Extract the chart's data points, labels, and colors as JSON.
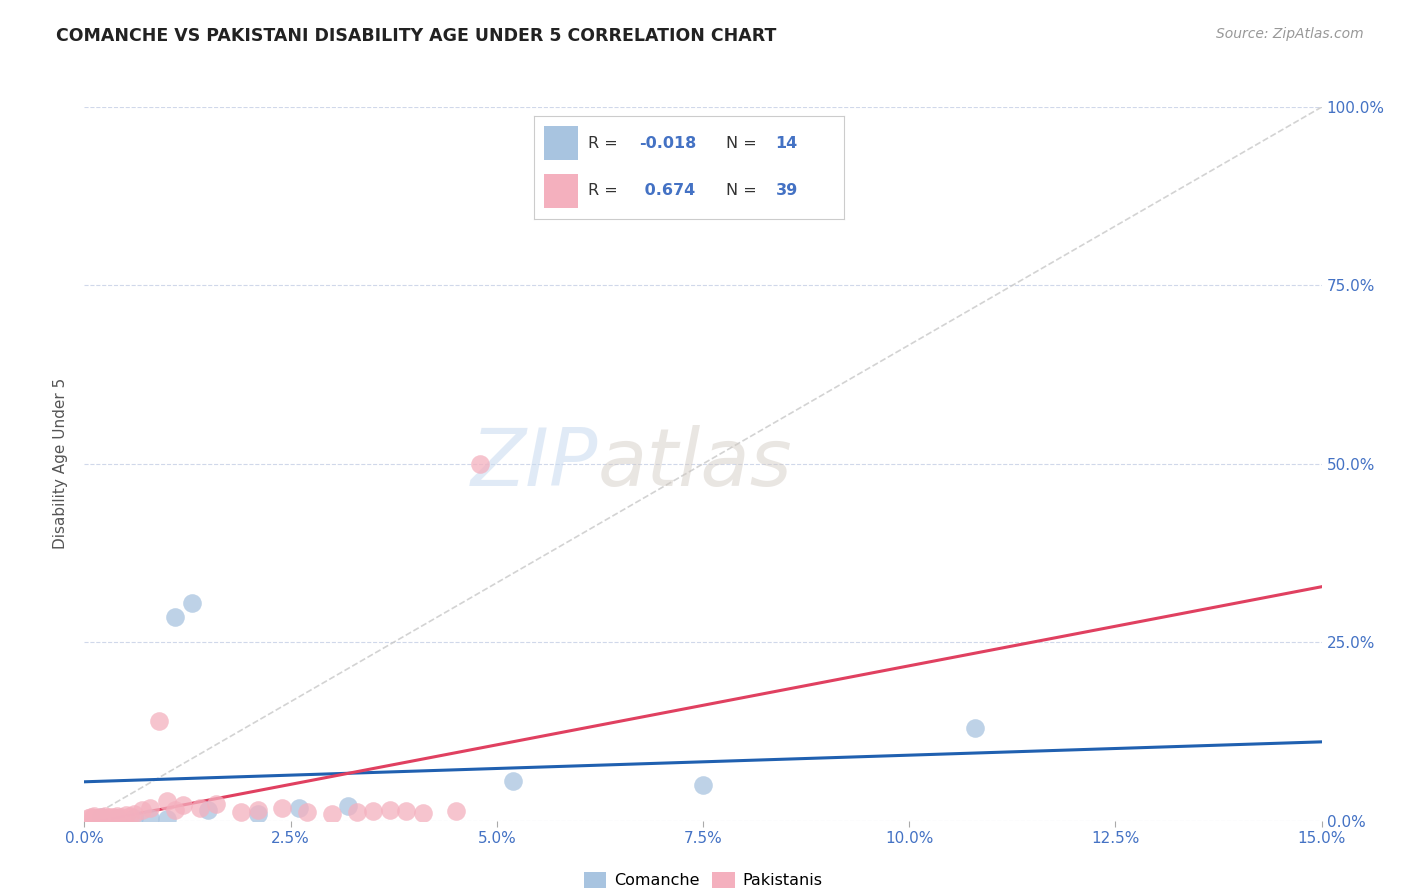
{
  "title": "COMANCHE VS PAKISTANI DISABILITY AGE UNDER 5 CORRELATION CHART",
  "source": "Source: ZipAtlas.com",
  "ylabel": "Disability Age Under 5",
  "xlabel_vals": [
    0.0,
    2.5,
    5.0,
    7.5,
    10.0,
    12.5,
    15.0
  ],
  "ylabel_vals": [
    0.0,
    25.0,
    50.0,
    75.0,
    100.0
  ],
  "xlim": [
    0.0,
    15.0
  ],
  "ylim": [
    0.0,
    100.0
  ],
  "comanche_R": -0.018,
  "comanche_N": 14,
  "pakistani_R": 0.674,
  "pakistani_N": 39,
  "comanche_color": "#a8c4e0",
  "pakistani_color": "#f4b0be",
  "comanche_line_color": "#2060b0",
  "pakistani_line_color": "#e04060",
  "diagonal_color": "#c8c8c8",
  "watermark_zip": "ZIP",
  "watermark_atlas": "atlas",
  "comanche_x": [
    0.2,
    0.4,
    0.6,
    0.8,
    1.0,
    1.1,
    1.3,
    1.5,
    2.1,
    2.6,
    3.2,
    5.2,
    7.5,
    10.8
  ],
  "comanche_y": [
    0.5,
    0.3,
    0.4,
    0.3,
    0.2,
    28.5,
    30.5,
    1.5,
    1.0,
    1.8,
    2.0,
    5.5,
    5.0,
    13.0
  ],
  "pakistani_x": [
    0.05,
    0.08,
    0.1,
    0.12,
    0.15,
    0.18,
    0.2,
    0.22,
    0.25,
    0.28,
    0.3,
    0.32,
    0.35,
    0.38,
    0.4,
    0.45,
    0.5,
    0.55,
    0.6,
    0.7,
    0.8,
    0.9,
    1.0,
    1.1,
    1.2,
    1.4,
    1.6,
    1.9,
    2.1,
    2.4,
    2.7,
    3.0,
    3.3,
    3.5,
    3.7,
    3.9,
    4.1,
    4.5,
    4.8
  ],
  "pakistani_y": [
    0.3,
    0.5,
    0.4,
    0.6,
    0.3,
    0.4,
    0.5,
    0.3,
    0.6,
    0.4,
    0.5,
    0.3,
    0.5,
    0.4,
    0.7,
    0.5,
    0.8,
    0.6,
    1.0,
    1.5,
    1.8,
    14.0,
    2.8,
    1.5,
    2.2,
    1.8,
    2.3,
    1.2,
    1.5,
    1.8,
    1.2,
    1.0,
    1.2,
    1.4,
    1.5,
    1.3,
    1.1,
    1.3,
    50.0
  ],
  "legend_R1": "R = -0.018",
  "legend_N1": "N = 14",
  "legend_R2": "R =  0.674",
  "legend_N2": "N = 39"
}
